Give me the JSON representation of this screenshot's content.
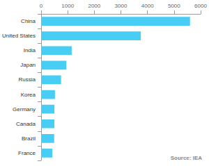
{
  "chart_data": {
    "type": "bar",
    "orientation": "horizontal",
    "categories": [
      "China",
      "United States",
      "India",
      "Japan",
      "Russia",
      "Korea",
      "Germany",
      "Canada",
      "Brazil",
      "France"
    ],
    "values": [
      5600,
      3750,
      1150,
      950,
      750,
      520,
      500,
      500,
      490,
      420
    ],
    "color": "#48cdf5",
    "xlim": [
      0,
      6000
    ],
    "xticks": [
      0,
      1000,
      2000,
      3000,
      4000,
      5000,
      6000
    ],
    "grid": false,
    "annotations": [
      "Source: IEA"
    ]
  }
}
